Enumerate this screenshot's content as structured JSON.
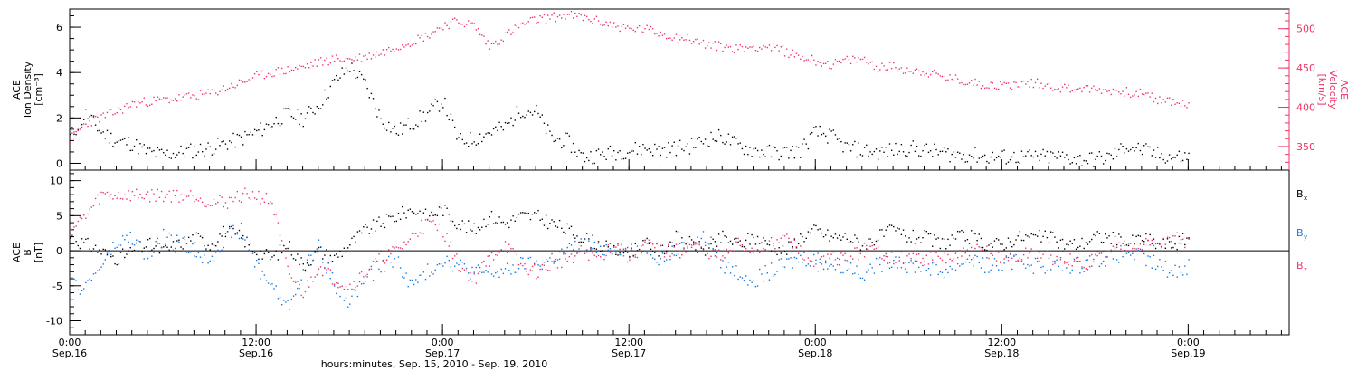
{
  "colors": {
    "black": "#000000",
    "pink": "#ee3366",
    "blue": "#1177dd"
  },
  "xaxis": {
    "label": "hours:minutes, Sep. 15, 2010 - Sep. 19, 2010",
    "ticks": [
      {
        "t": 0,
        "time": "0:00",
        "date": "Sep.16"
      },
      {
        "t": 12,
        "time": "12:00",
        "date": "Sep.16"
      },
      {
        "t": 24,
        "time": "0:00",
        "date": "Sep.17"
      },
      {
        "t": 36,
        "time": "12:00",
        "date": "Sep.17"
      },
      {
        "t": 48,
        "time": "0:00",
        "date": "Sep.18"
      },
      {
        "t": 60,
        "time": "12:00",
        "date": "Sep.18"
      },
      {
        "t": 72,
        "time": "0:00",
        "date": "Sep.19"
      }
    ],
    "range_hours": [
      0,
      78.5
    ]
  },
  "chart_data": [
    {
      "type": "scatter",
      "panel": "top",
      "ylabel_left": [
        "ACE",
        "Ion Density",
        "[cm⁻³]"
      ],
      "ylabel_right": [
        "ACE",
        "Velocity",
        "[km/s]"
      ],
      "ylim_left": [
        -0.3,
        6.8
      ],
      "ylim_right": [
        320,
        525
      ],
      "left_ticks": [
        0,
        2,
        4,
        6
      ],
      "right_ticks": [
        350,
        400,
        450,
        500
      ],
      "series": [
        {
          "axis": "left",
          "color": "black",
          "x_hours": [
            0,
            1,
            2,
            3,
            4,
            5,
            6,
            7,
            8,
            9,
            10,
            11,
            12,
            13,
            14,
            15,
            16,
            17,
            18,
            19,
            20,
            21,
            22,
            23,
            24,
            25,
            26,
            27,
            28,
            29,
            30,
            31,
            32,
            33,
            34,
            35,
            36,
            37,
            38,
            39,
            40,
            41,
            42,
            43,
            44,
            45,
            46,
            47,
            48,
            49,
            50,
            51,
            52,
            53,
            54,
            55,
            56,
            57,
            58,
            59,
            60,
            61,
            62,
            63,
            64,
            65,
            66,
            67,
            68,
            69,
            70,
            71,
            72
          ],
          "values": [
            1.2,
            2.2,
            1.4,
            1.0,
            0.9,
            0.5,
            0.4,
            0.5,
            0.6,
            0.7,
            0.9,
            1.1,
            1.4,
            1.8,
            2.2,
            2.0,
            2.6,
            3.6,
            4.3,
            3.5,
            2.0,
            1.4,
            1.8,
            2.2,
            2.8,
            1.0,
            1.1,
            1.4,
            1.6,
            2.4,
            2.3,
            1.1,
            1.0,
            0.3,
            0.4,
            0.5,
            0.6,
            0.7,
            0.6,
            0.7,
            0.8,
            1.1,
            1.2,
            0.8,
            0.6,
            0.5,
            0.5,
            0.6,
            1.4,
            1.2,
            0.7,
            0.6,
            0.5,
            0.6,
            0.7,
            0.6,
            0.5,
            0.4,
            0.4,
            0.3,
            0.3,
            0.3,
            0.3,
            0.3,
            0.3,
            0.2,
            0.2,
            0.3,
            0.8,
            0.6,
            0.4,
            0.3,
            0.3
          ]
        },
        {
          "axis": "right",
          "color": "pink",
          "x_hours": [
            0,
            1,
            2,
            3,
            4,
            5,
            6,
            7,
            8,
            9,
            10,
            11,
            12,
            13,
            14,
            15,
            16,
            17,
            18,
            19,
            20,
            21,
            22,
            23,
            24,
            25,
            26,
            27,
            28,
            29,
            30,
            31,
            32,
            33,
            34,
            35,
            36,
            37,
            38,
            39,
            40,
            41,
            42,
            43,
            44,
            45,
            46,
            47,
            48,
            49,
            50,
            51,
            52,
            53,
            54,
            55,
            56,
            57,
            58,
            59,
            60,
            61,
            62,
            63,
            64,
            65,
            66,
            67,
            68,
            69,
            70,
            71,
            72
          ],
          "values": [
            360,
            380,
            388,
            395,
            405,
            408,
            410,
            412,
            415,
            418,
            425,
            432,
            440,
            445,
            448,
            452,
            458,
            462,
            462,
            465,
            470,
            478,
            485,
            492,
            505,
            510,
            505,
            478,
            492,
            505,
            512,
            515,
            518,
            515,
            510,
            505,
            500,
            500,
            495,
            490,
            487,
            480,
            478,
            475,
            478,
            478,
            472,
            465,
            460,
            455,
            460,
            462,
            452,
            452,
            448,
            446,
            440,
            436,
            432,
            430,
            428,
            430,
            432,
            428,
            425,
            425,
            423,
            422,
            420,
            418,
            410,
            408,
            403
          ]
        }
      ]
    },
    {
      "type": "scatter",
      "panel": "bottom",
      "ylabel_left": [
        "ACE",
        "B",
        "[nT]"
      ],
      "ylim": [
        -12,
        11.5
      ],
      "ticks": [
        -10,
        -5,
        0,
        5,
        10
      ],
      "legend": [
        {
          "label": "B",
          "sub": "x",
          "color": "black"
        },
        {
          "label": "B",
          "sub": "y",
          "color": "blue"
        },
        {
          "label": "B",
          "sub": "z",
          "color": "pink"
        }
      ],
      "series": [
        {
          "name": "Bx",
          "color": "black",
          "x_hours": [
            0,
            1,
            2,
            3,
            4,
            5,
            6,
            7,
            8,
            9,
            10,
            11,
            12,
            13,
            14,
            15,
            16,
            17,
            18,
            19,
            20,
            21,
            22,
            23,
            24,
            25,
            26,
            27,
            28,
            29,
            30,
            31,
            32,
            33,
            34,
            35,
            36,
            37,
            38,
            39,
            40,
            41,
            42,
            43,
            44,
            45,
            46,
            47,
            48,
            49,
            50,
            51,
            52,
            53,
            54,
            55,
            56,
            57,
            58,
            59,
            60,
            61,
            62,
            63,
            64,
            65,
            66,
            67,
            68,
            69,
            70,
            71,
            72
          ],
          "values": [
            2,
            1,
            0,
            -1,
            0,
            1,
            0,
            1,
            2,
            1,
            3,
            2,
            0,
            -1,
            1,
            -2,
            0,
            -1,
            1,
            3,
            4,
            5,
            6,
            5,
            6,
            4,
            3,
            5,
            4,
            5,
            5,
            4,
            3,
            2,
            1,
            0,
            0,
            1,
            0,
            2,
            1,
            0,
            2,
            1,
            2,
            1,
            0,
            2,
            3,
            2,
            2,
            1,
            2,
            3,
            2,
            2,
            1,
            2,
            2,
            1,
            1,
            2,
            2,
            2,
            1,
            1,
            2,
            2,
            1,
            2,
            1,
            1,
            2
          ]
        },
        {
          "name": "By",
          "color": "blue",
          "x_hours": [
            0,
            1,
            2,
            3,
            4,
            5,
            6,
            7,
            8,
            9,
            10,
            11,
            12,
            13,
            14,
            15,
            16,
            17,
            18,
            19,
            20,
            21,
            22,
            23,
            24,
            25,
            26,
            27,
            28,
            29,
            30,
            31,
            32,
            33,
            34,
            35,
            36,
            37,
            38,
            39,
            40,
            41,
            42,
            43,
            44,
            45,
            46,
            47,
            48,
            49,
            50,
            51,
            52,
            53,
            54,
            55,
            56,
            57,
            58,
            59,
            60,
            61,
            62,
            63,
            64,
            65,
            66,
            67,
            68,
            69,
            70,
            71,
            72
          ],
          "values": [
            -5,
            -5,
            -2,
            1,
            2,
            -1,
            2,
            1,
            0,
            -1,
            2,
            3,
            -2,
            -5,
            -8,
            -3,
            1,
            -5,
            -7,
            -4,
            -2,
            -1,
            -5,
            -3,
            -1,
            -2,
            -3,
            -3,
            -3,
            -2,
            -2,
            -1,
            0,
            1,
            0,
            1,
            0,
            1,
            -1,
            0,
            1,
            2,
            -2,
            -3,
            -4,
            -3,
            -2,
            -1,
            -1,
            -2,
            -2,
            -3,
            -2,
            -1,
            -2,
            -2,
            -3,
            -2,
            -1,
            -2,
            -2,
            -1,
            -2,
            -2,
            -2,
            -2,
            -1,
            -1,
            0,
            -1,
            -2,
            -3,
            -2
          ]
        },
        {
          "name": "Bz",
          "color": "pink",
          "x_hours": [
            0,
            1,
            2,
            3,
            4,
            5,
            6,
            7,
            8,
            9,
            10,
            11,
            12,
            13,
            14,
            15,
            16,
            17,
            18,
            19,
            20,
            21,
            22,
            23,
            24,
            25,
            26,
            27,
            28,
            29,
            30,
            31,
            32,
            33,
            34,
            35,
            36,
            37,
            38,
            39,
            40,
            41,
            42,
            43,
            44,
            45,
            46,
            47,
            48,
            49,
            50,
            51,
            52,
            53,
            54,
            55,
            56,
            57,
            58,
            59,
            60,
            61,
            62,
            63,
            64,
            65,
            66,
            67,
            68,
            69,
            70,
            71,
            72
          ],
          "values": [
            3,
            5,
            8,
            8,
            8,
            8,
            8,
            8,
            8,
            7,
            7,
            8,
            8,
            7,
            -3,
            -6,
            -2,
            -4,
            -5,
            -3,
            -1,
            0,
            2,
            4,
            3,
            -2,
            -4,
            -1,
            1,
            -2,
            -3,
            -2,
            -1,
            0,
            -1,
            1,
            -1,
            1,
            0,
            0,
            1,
            0,
            -1,
            1,
            0,
            1,
            2,
            0,
            -2,
            -1,
            -1,
            0,
            0,
            -1,
            -1,
            -1,
            -1,
            -1,
            0,
            0,
            -1,
            -1,
            0,
            -1,
            -1,
            -2,
            -1,
            0,
            1,
            1,
            1,
            2,
            1
          ]
        }
      ]
    }
  ]
}
